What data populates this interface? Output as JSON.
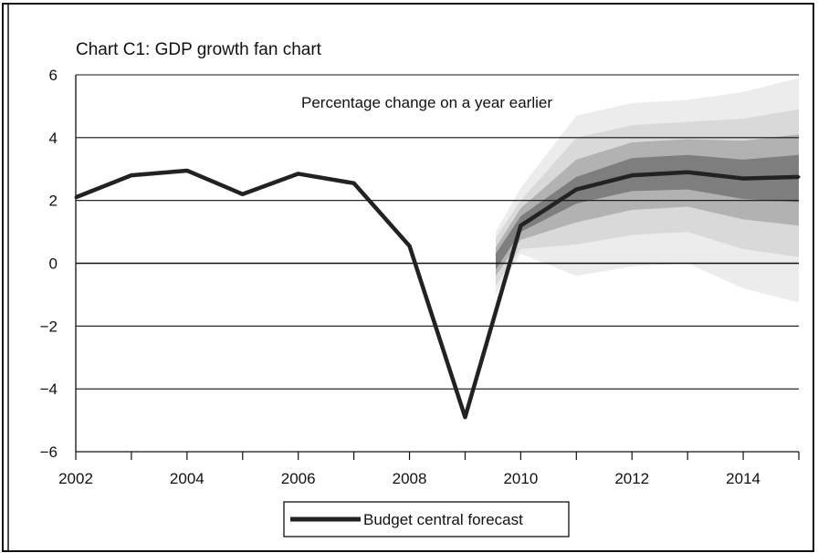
{
  "chart_data": {
    "type": "line",
    "title": "Chart C1: GDP growth fan chart",
    "subtitle": "Percentage change on a year earlier",
    "xlabel": "",
    "ylabel": "",
    "xlim": [
      2002,
      2015
    ],
    "ylim": [
      -6,
      6
    ],
    "grid": true,
    "legend_position": "bottom-center",
    "x_ticks": [
      "2002",
      "2004",
      "2006",
      "2008",
      "2010",
      "2012",
      "2014"
    ],
    "x_tick_values": [
      2002,
      2004,
      2006,
      2008,
      2010,
      2012,
      2014
    ],
    "y_ticks": [
      "6",
      "4",
      "2",
      "0",
      "−2",
      "−4",
      "−6"
    ],
    "y_tick_values": [
      6,
      4,
      2,
      0,
      -2,
      -4,
      -6
    ],
    "series": [
      {
        "name": "Budget central forecast",
        "color": "#222222",
        "x": [
          2002,
          2003,
          2004,
          2005,
          2006,
          2007,
          2008,
          2009,
          2010,
          2011,
          2012,
          2013,
          2014,
          2015
        ],
        "values": [
          2.1,
          2.8,
          2.95,
          2.2,
          2.85,
          2.55,
          0.55,
          -4.9,
          1.2,
          2.35,
          2.8,
          2.9,
          2.7,
          2.75
        ]
      }
    ],
    "fan": {
      "x": [
        2009.55,
        2010,
        2011,
        2012,
        2013,
        2014,
        2015
      ],
      "bands": [
        {
          "color": "#ececec",
          "lower": [
            -1.0,
            0.3,
            -0.4,
            -0.1,
            0.0,
            -0.8,
            -1.25
          ],
          "upper": [
            1.0,
            2.4,
            4.7,
            5.1,
            5.2,
            5.45,
            5.9
          ]
        },
        {
          "color": "#d9d9d9",
          "lower": [
            -0.7,
            0.45,
            0.6,
            0.9,
            1.0,
            0.45,
            0.2
          ],
          "upper": [
            0.8,
            2.0,
            4.0,
            4.4,
            4.5,
            4.6,
            4.9
          ]
        },
        {
          "color": "#b2b2b2",
          "lower": [
            -0.4,
            0.75,
            1.3,
            1.7,
            1.8,
            1.4,
            1.2
          ],
          "upper": [
            0.5,
            1.75,
            3.3,
            3.85,
            3.95,
            3.9,
            4.1
          ]
        },
        {
          "color": "#7e7e7e",
          "lower": [
            -0.2,
            1.0,
            1.9,
            2.3,
            2.35,
            2.05,
            1.95
          ],
          "upper": [
            0.3,
            1.5,
            2.75,
            3.35,
            3.45,
            3.3,
            3.45
          ]
        }
      ]
    },
    "legend": [
      {
        "label": "Budget central forecast",
        "color": "#222222"
      }
    ]
  }
}
